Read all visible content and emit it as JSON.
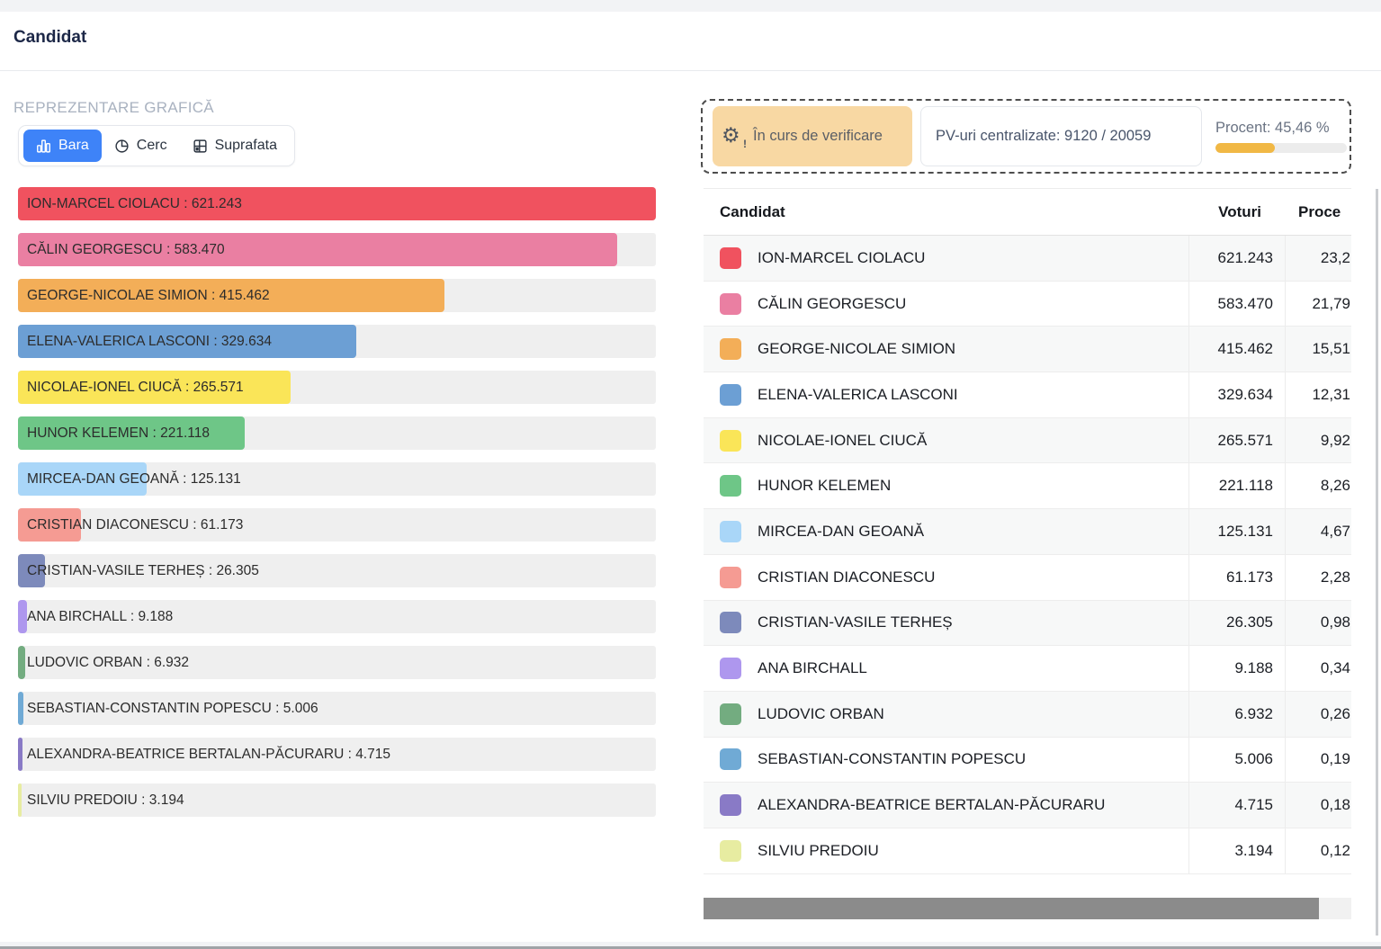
{
  "page": {
    "title": "Candidat"
  },
  "graphic_section": {
    "heading": "REPREZENTARE GRAFICĂ",
    "tabs": [
      {
        "label": "Bara",
        "icon": "bar-chart-icon",
        "active": true
      },
      {
        "label": "Cerc",
        "icon": "pie-chart-icon",
        "active": false
      },
      {
        "label": "Suprafata",
        "icon": "area-grid-icon",
        "active": false
      }
    ]
  },
  "status": {
    "verification_label": "În curs de verificare",
    "verification_icon": "gear-alert-icon",
    "verification_bg": "#f8d8a3",
    "pv_label": "PV-uri centralizate: 9120 / 20059",
    "percent_label": "Procent: 45,46 %",
    "percent_value": 45.46,
    "progress_color": "#f1b845"
  },
  "chart_data": {
    "type": "bar",
    "orientation": "horizontal",
    "title": "REPREZENTARE GRAFICĂ",
    "xlim": [
      0,
      621243
    ],
    "categories": [
      "ION-MARCEL CIOLACU",
      "CĂLIN GEORGESCU",
      "GEORGE-NICOLAE SIMION",
      "ELENA-VALERICA LASCONI",
      "NICOLAE-IONEL CIUCĂ",
      "HUNOR KELEMEN",
      "MIRCEA-DAN GEOANĂ",
      "CRISTIAN DIACONESCU",
      "CRISTIAN-VASILE TERHEȘ",
      "ANA BIRCHALL",
      "LUDOVIC ORBAN",
      "SEBASTIAN-CONSTANTIN POPESCU",
      "ALEXANDRA-BEATRICE BERTALAN-PĂCURARU",
      "SILVIU PREDOIU"
    ],
    "values": [
      621243,
      583470,
      415462,
      329634,
      265571,
      221118,
      125131,
      61173,
      26305,
      9188,
      6932,
      5006,
      4715,
      3194
    ],
    "value_labels": [
      "621.243",
      "583.470",
      "415.462",
      "329.634",
      "265.571",
      "221.118",
      "125.131",
      "61.173",
      "26.305",
      "9.188",
      "6.932",
      "5.006",
      "4.715",
      "3.194"
    ],
    "label_separator": " : ",
    "colors": [
      "#f0525f",
      "#ea7fa2",
      "#f3ae58",
      "#6c9fd4",
      "#fae558",
      "#6ec687",
      "#a9d6f8",
      "#f59b93",
      "#7d8abb",
      "#ae97ee",
      "#73ac80",
      "#70aad5",
      "#897ac6",
      "#e7eca1"
    ]
  },
  "table": {
    "columns": {
      "candidate": "Candidat",
      "votes": "Voturi",
      "percent": "Proce"
    },
    "rows": [
      {
        "name": "ION-MARCEL CIOLACU",
        "votes": "621.243",
        "percent": "23,2",
        "color": "#f0525f"
      },
      {
        "name": "CĂLIN GEORGESCU",
        "votes": "583.470",
        "percent": "21,79",
        "color": "#ea7fa2"
      },
      {
        "name": "GEORGE-NICOLAE SIMION",
        "votes": "415.462",
        "percent": "15,51",
        "color": "#f3ae58"
      },
      {
        "name": "ELENA-VALERICA LASCONI",
        "votes": "329.634",
        "percent": "12,31",
        "color": "#6c9fd4"
      },
      {
        "name": "NICOLAE-IONEL CIUCĂ",
        "votes": "265.571",
        "percent": "9,92",
        "color": "#fae558"
      },
      {
        "name": "HUNOR KELEMEN",
        "votes": "221.118",
        "percent": "8,26",
        "color": "#6ec687"
      },
      {
        "name": "MIRCEA-DAN GEOANĂ",
        "votes": "125.131",
        "percent": "4,67",
        "color": "#a9d6f8"
      },
      {
        "name": "CRISTIAN DIACONESCU",
        "votes": "61.173",
        "percent": "2,28",
        "color": "#f59b93"
      },
      {
        "name": "CRISTIAN-VASILE TERHEȘ",
        "votes": "26.305",
        "percent": "0,98",
        "color": "#7d8abb"
      },
      {
        "name": "ANA BIRCHALL",
        "votes": "9.188",
        "percent": "0,34",
        "color": "#ae97ee"
      },
      {
        "name": "LUDOVIC ORBAN",
        "votes": "6.932",
        "percent": "0,26",
        "color": "#73ac80"
      },
      {
        "name": "SEBASTIAN-CONSTANTIN POPESCU",
        "votes": "5.006",
        "percent": "0,19",
        "color": "#70aad5"
      },
      {
        "name": "ALEXANDRA-BEATRICE BERTALAN-PĂCURARU",
        "votes": "4.715",
        "percent": "0,18",
        "color": "#897ac6"
      },
      {
        "name": "SILVIU PREDOIU",
        "votes": "3.194",
        "percent": "0,12",
        "color": "#e7eca1"
      }
    ]
  }
}
